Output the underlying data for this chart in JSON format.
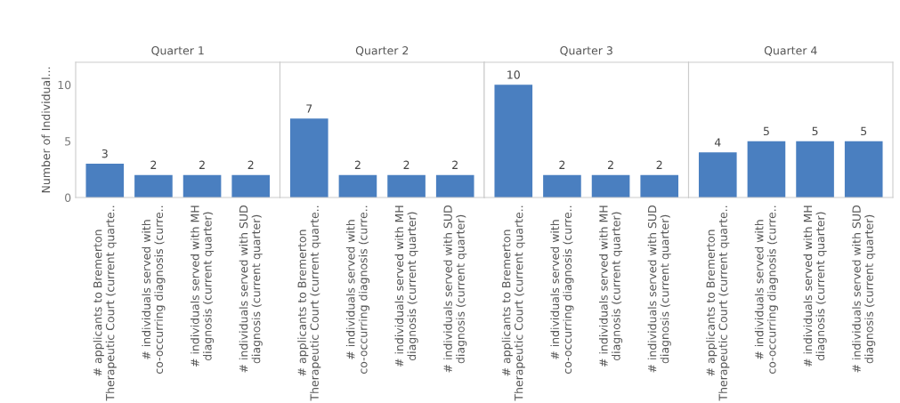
{
  "chart_data": [
    {
      "type": "bar",
      "title": "Quarter 1",
      "ylabel": "Number of Individual...",
      "categories": [
        "# applicants to Bremerton\nTherapeutic Court (current quarte..",
        "# individuals served with\nco-occurring diagnosis (curre..",
        "# individuals served with MH\ndiagnosis (current quarter)",
        "# individuals served with SUD\ndiagnosis (current quarter)"
      ],
      "values": [
        3,
        2,
        2,
        2
      ],
      "color": "#4a7fc0",
      "ylim": [
        0,
        12
      ],
      "yticks": [
        0,
        5,
        10
      ],
      "data_labels": true
    },
    {
      "type": "bar",
      "title": "Quarter 2",
      "categories": [
        "# applicants to Bremerton\nTherapeutic Court (current quarte..",
        "# individuals served with\nco-occurring diagnosis (curre..",
        "# individuals served with MH\ndiagnosis (current quarter)",
        "# individuals served with SUD\ndiagnosis (current quarter)"
      ],
      "values": [
        7,
        2,
        2,
        2
      ],
      "color": "#4a7fc0",
      "ylim": [
        0,
        12
      ],
      "tick_labels": "x",
      "data_labels": true
    },
    {
      "type": "bar",
      "title": "Quarter 3",
      "categories": [
        "# applicants to Bremerton\nTherapeutic Court (current quarte..",
        "# individuals served with\nco-occurring diagnosis (curre..",
        "# individuals served with MH\ndiagnosis (current quarter)",
        "# individuals served with SUD\ndiagnosis (current quarter)"
      ],
      "values": [
        10,
        2,
        2,
        2
      ],
      "color": "#4a7fc0",
      "ylim": [
        0,
        12
      ],
      "tick_labels": "x",
      "data_labels": true
    },
    {
      "type": "bar",
      "title": "Quarter 4",
      "categories": [
        "# applicants to Bremerton\nTherapeutic Court (current quarte..",
        "# individuals served with\nco-occurring diagnosis (curre..",
        "# individuals served with MH\ndiagnosis (current quarter)",
        "# individuals served with SUD\ndiagnosis (current quarter)"
      ],
      "values": [
        4,
        5,
        5,
        5
      ],
      "color": "#4a7fc0",
      "ylim": [
        0,
        12
      ],
      "tick_labels": "x",
      "data_labels": true
    }
  ]
}
